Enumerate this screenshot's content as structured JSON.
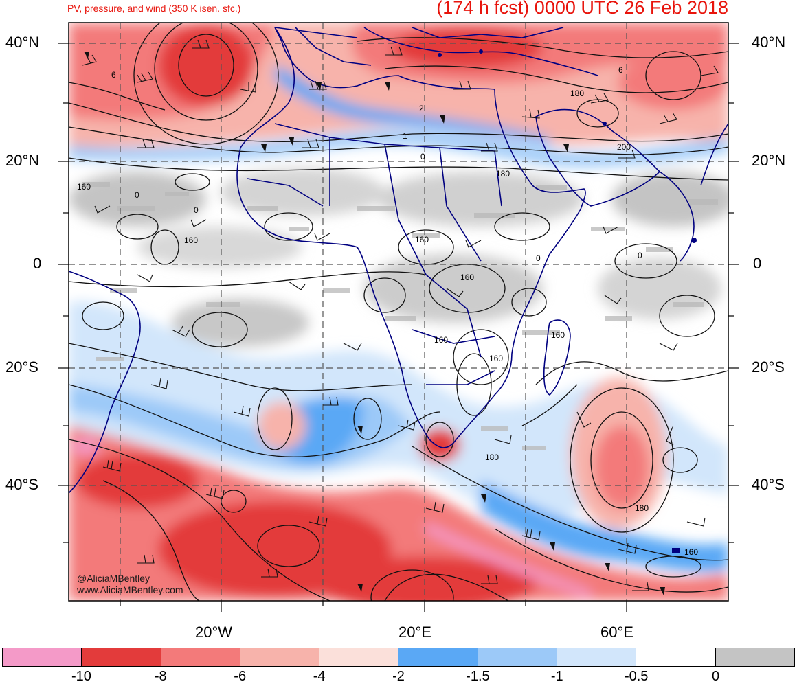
{
  "header": {
    "subtitle": "PV, pressure, and wind (350 K isen. sfc.)",
    "title": "(174 h fcst) 0000 UTC 26 Feb 2018"
  },
  "map": {
    "lat_labels": [
      "40°N",
      "20°N",
      "0",
      "20°S",
      "40°S"
    ],
    "lon_labels": [
      "20°W",
      "20°E",
      "60°E"
    ],
    "contour_labels": [
      "6",
      "2",
      "1",
      "0",
      "180",
      "200",
      "6",
      "160",
      "0",
      "0",
      "160",
      "160",
      "0",
      "160",
      "160",
      "0",
      "160",
      "160",
      "180",
      "180",
      "180",
      "160"
    ],
    "credit": [
      "@AliciaMBentley",
      "www.AliciaMBentley.com"
    ],
    "colors": {
      "grid": "#555555",
      "border": "#000080",
      "contour": "#111111"
    }
  },
  "colorbar": {
    "bins": [
      {
        "color": "#f49ac8"
      },
      {
        "color": "#e33b3b"
      },
      {
        "color": "#f37a7a"
      },
      {
        "color": "#f7b3ab"
      },
      {
        "color": "#fbe0da"
      },
      {
        "color": "#5aa8f5"
      },
      {
        "color": "#9cc9f8"
      },
      {
        "color": "#d2e6fb"
      },
      {
        "color": "#ffffff"
      },
      {
        "color": "#c4c4c4"
      }
    ],
    "labels": [
      "-10",
      "-8",
      "-6",
      "-4",
      "-2",
      "-1.5",
      "-1",
      "-0.5",
      "0"
    ]
  }
}
